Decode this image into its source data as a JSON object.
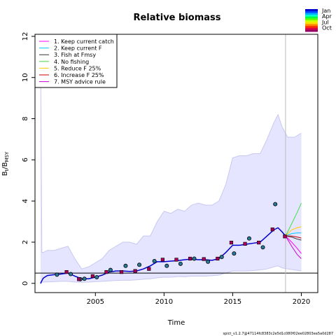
{
  "chart_data": {
    "type": "line",
    "title": "Relative biomass",
    "xlabel": "Time",
    "ylabel": "B_t/B_MSY",
    "footer": "spict_v1.2.7@47114fc8383c2e5d1c080f02ee02803ea5a0d287",
    "xlim": [
      2000.6,
      2021.2
    ],
    "ylim": [
      -0.45,
      12.1
    ],
    "x_ticks": [
      2005,
      2010,
      2015,
      2020
    ],
    "y_ticks": [
      0,
      2,
      4,
      6,
      8,
      10,
      12
    ],
    "reference_line_y": 0.5,
    "vertical_line_x": 2018.85,
    "season_colors": [
      "#0000cc",
      "#0044ff",
      "#00aaff",
      "#00ffcc",
      "#00ff44",
      "#66ff00",
      "#ccff00",
      "#ffdd00",
      "#ff8800",
      "#ff3300",
      "#dd0044",
      "#990066"
    ],
    "season_labels": [
      "Jan",
      "Apr",
      "Jul",
      "Oct"
    ],
    "ci_band": {
      "x": [
        2001.0,
        2001.1,
        2001.2,
        2001.5,
        2002.0,
        2002.5,
        2003.0,
        2003.5,
        2004.0,
        2004.5,
        2005.0,
        2005.5,
        2006.0,
        2006.5,
        2007.0,
        2007.5,
        2008.0,
        2008.5,
        2009.0,
        2009.5,
        2010.0,
        2010.5,
        2011.0,
        2011.5,
        2012.0,
        2012.5,
        2013.0,
        2013.5,
        2014.0,
        2014.5,
        2015.0,
        2015.5,
        2016.0,
        2016.5,
        2017.0,
        2017.5,
        2018.0,
        2018.3,
        2018.6,
        2019.0,
        2019.5,
        2020.0
      ],
      "upper": [
        12.0,
        1.5,
        1.5,
        1.6,
        1.6,
        1.7,
        1.8,
        1.2,
        0.7,
        0.8,
        1.0,
        1.2,
        1.6,
        1.8,
        2.0,
        2.0,
        1.9,
        2.3,
        2.3,
        3.0,
        3.5,
        3.4,
        3.6,
        3.5,
        3.8,
        3.9,
        3.8,
        3.8,
        4.0,
        4.8,
        6.1,
        6.2,
        6.2,
        6.3,
        6.3,
        7.0,
        7.8,
        8.2,
        7.6,
        7.1,
        7.1,
        7.3
      ],
      "lower": [
        -0.05,
        0.05,
        0.06,
        0.07,
        0.08,
        0.1,
        0.1,
        0.06,
        0.05,
        0.06,
        0.08,
        0.1,
        0.12,
        0.14,
        0.15,
        0.15,
        0.17,
        0.2,
        0.22,
        0.27,
        0.3,
        0.3,
        0.33,
        0.32,
        0.35,
        0.35,
        0.35,
        0.37,
        0.4,
        0.5,
        0.6,
        0.6,
        0.6,
        0.62,
        0.65,
        0.7,
        0.8,
        0.85,
        0.75,
        0.7,
        0.65,
        0.6
      ]
    },
    "estimate": {
      "x": [
        2001.0,
        2001.2,
        2001.5,
        2002.0,
        2002.5,
        2003.0,
        2003.5,
        2004.0,
        2004.5,
        2005.0,
        2005.5,
        2006.0,
        2006.5,
        2007.0,
        2007.5,
        2008.0,
        2008.5,
        2009.0,
        2009.5,
        2010.0,
        2010.5,
        2011.0,
        2011.5,
        2012.0,
        2012.5,
        2013.0,
        2013.5,
        2014.0,
        2014.5,
        2015.0,
        2015.5,
        2016.0,
        2016.5,
        2017.0,
        2017.5,
        2018.0,
        2018.3,
        2018.6,
        2018.85
      ],
      "y": [
        0.0,
        0.25,
        0.38,
        0.42,
        0.45,
        0.5,
        0.35,
        0.22,
        0.22,
        0.3,
        0.4,
        0.55,
        0.6,
        0.6,
        0.58,
        0.6,
        0.7,
        0.85,
        1.05,
        1.05,
        1.08,
        1.1,
        1.15,
        1.18,
        1.15,
        1.15,
        1.12,
        1.2,
        1.5,
        1.85,
        1.85,
        1.9,
        1.95,
        2.0,
        2.3,
        2.6,
        2.7,
        2.5,
        2.3
      ]
    },
    "observations": {
      "circles": [
        [
          2002.2,
          0.42
        ],
        [
          2003.2,
          0.45
        ],
        [
          2003.9,
          0.2
        ],
        [
          2004.2,
          0.22
        ],
        [
          2005.1,
          0.3
        ],
        [
          2006.1,
          0.65
        ],
        [
          2007.2,
          0.85
        ],
        [
          2008.2,
          0.9
        ],
        [
          2009.3,
          1.08
        ],
        [
          2010.2,
          0.85
        ],
        [
          2011.2,
          0.95
        ],
        [
          2012.2,
          1.2
        ],
        [
          2013.2,
          1.05
        ],
        [
          2014.2,
          1.28
        ],
        [
          2015.1,
          1.45
        ],
        [
          2016.2,
          2.18
        ],
        [
          2017.2,
          1.75
        ],
        [
          2018.1,
          3.85
        ]
      ],
      "squares": [
        [
          2002.9,
          0.55
        ],
        [
          2003.8,
          0.2
        ],
        [
          2004.8,
          0.35
        ],
        [
          2005.8,
          0.55
        ],
        [
          2006.9,
          0.55
        ],
        [
          2007.9,
          0.6
        ],
        [
          2008.9,
          0.7
        ],
        [
          2009.9,
          1.15
        ],
        [
          2010.9,
          1.15
        ],
        [
          2011.9,
          1.2
        ],
        [
          2012.9,
          1.18
        ],
        [
          2013.9,
          1.2
        ],
        [
          2014.9,
          1.98
        ],
        [
          2015.9,
          1.92
        ],
        [
          2016.9,
          1.98
        ],
        [
          2017.9,
          2.62
        ],
        [
          2018.8,
          2.28
        ]
      ]
    },
    "series": [
      {
        "name": "1. Keep current catch",
        "color": "#ff00ff",
        "x": [
          2018.85,
          2019.3,
          2019.7,
          2020.0
        ],
        "y": [
          2.3,
          2.0,
          1.7,
          1.45
        ]
      },
      {
        "name": "2. Keep current F",
        "color": "#00ccff",
        "x": [
          2018.85,
          2019.3,
          2019.7,
          2020.0
        ],
        "y": [
          2.3,
          2.42,
          2.45,
          2.45
        ]
      },
      {
        "name": "3. Fish at Fmsy",
        "color": "#333333",
        "x": [
          2018.85,
          2019.3,
          2019.7,
          2020.0
        ],
        "y": [
          2.3,
          2.25,
          2.15,
          2.1
        ]
      },
      {
        "name": "4. No fishing",
        "color": "#44dd44",
        "x": [
          2018.85,
          2019.3,
          2019.7,
          2020.0
        ],
        "y": [
          2.3,
          2.9,
          3.45,
          3.9
        ]
      },
      {
        "name": "5. Reduce F 25%",
        "color": "#ffcc00",
        "x": [
          2018.85,
          2019.3,
          2019.7,
          2020.0
        ],
        "y": [
          2.3,
          2.6,
          2.7,
          2.75
        ]
      },
      {
        "name": "6. Increase F 25%",
        "color": "#cc0000",
        "x": [
          2018.85,
          2019.3,
          2019.7,
          2020.0
        ],
        "y": [
          2.3,
          2.3,
          2.25,
          2.2
        ]
      },
      {
        "name": "7. MSY advice rule",
        "color": "#cc00cc",
        "x": [
          2018.85,
          2019.3,
          2019.7,
          2020.0
        ],
        "y": [
          2.3,
          1.8,
          1.4,
          1.2
        ]
      }
    ]
  }
}
